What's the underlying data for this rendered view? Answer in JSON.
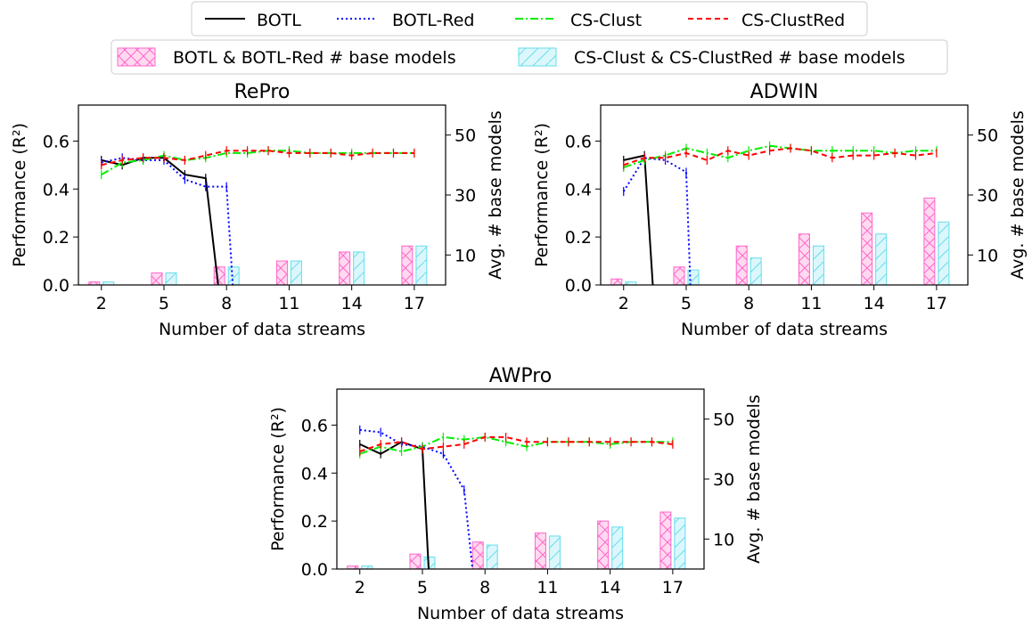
{
  "legend": {
    "line_entries": [
      {
        "label": "BOTL",
        "color": "#000000",
        "dash": "solid"
      },
      {
        "label": "BOTL-Red",
        "color": "#0000ff",
        "dash": "dotted"
      },
      {
        "label": "CS-Clust",
        "color": "#00ee00",
        "dash": "dashdot"
      },
      {
        "label": "CS-ClustRed",
        "color": "#ff0000",
        "dash": "dashed"
      }
    ],
    "bar_entries": [
      {
        "label": "BOTL & BOTL-Red # base models",
        "color": "#ff66cc"
      },
      {
        "label": "CS-Clust & CS-ClustRed # base models",
        "color": "#66ddee"
      }
    ]
  },
  "chart_data": [
    {
      "type": "line",
      "title": "RePro",
      "xlabel": "Number of data streams",
      "ylabel": "Performance (R²)",
      "y2label": "Avg. # base models",
      "x_ticks": [
        2,
        5,
        8,
        11,
        14,
        17
      ],
      "xlim": [
        0.9,
        18.5
      ],
      "ylim": [
        0,
        0.75
      ],
      "y_ticks": [
        "0.0",
        "0.2",
        "0.4",
        "0.6"
      ],
      "y2lim": [
        0,
        60
      ],
      "y2_ticks": [
        "10",
        "30",
        "50"
      ],
      "series": [
        {
          "name": "BOTL",
          "x": [
            2,
            3,
            4,
            5,
            6,
            7,
            7.6
          ],
          "y": [
            0.52,
            0.5,
            0.53,
            0.53,
            0.46,
            0.445,
            0.0
          ]
        },
        {
          "name": "BOTL-Red",
          "x": [
            2,
            3,
            4,
            5,
            6,
            7,
            8,
            8.3
          ],
          "y": [
            0.51,
            0.53,
            0.52,
            0.52,
            0.44,
            0.41,
            0.41,
            0.0
          ]
        },
        {
          "name": "CS-Clust",
          "x": [
            2,
            3,
            4,
            5,
            6,
            7,
            8,
            9,
            10,
            11,
            12,
            13,
            14,
            15,
            16,
            17
          ],
          "y": [
            0.46,
            0.51,
            0.52,
            0.54,
            0.52,
            0.53,
            0.55,
            0.55,
            0.56,
            0.56,
            0.55,
            0.55,
            0.55,
            0.55,
            0.55,
            0.55
          ]
        },
        {
          "name": "CS-ClustRed",
          "x": [
            2,
            3,
            4,
            5,
            6,
            7,
            8,
            9,
            10,
            11,
            12,
            13,
            14,
            15,
            16,
            17
          ],
          "y": [
            0.5,
            0.52,
            0.53,
            0.53,
            0.52,
            0.54,
            0.56,
            0.56,
            0.56,
            0.55,
            0.55,
            0.55,
            0.54,
            0.55,
            0.55,
            0.55
          ]
        }
      ],
      "bars": {
        "x": [
          2,
          5,
          8,
          11,
          14,
          17
        ],
        "botl": [
          1,
          4,
          6,
          8,
          11,
          13
        ],
        "cs": [
          1,
          4,
          6,
          8,
          11,
          13
        ]
      }
    },
    {
      "type": "line",
      "title": "ADWIN",
      "xlabel": "Number of data streams",
      "ylabel": "Performance (R²)",
      "y2label": "Avg. # base models",
      "x_ticks": [
        2,
        5,
        8,
        11,
        14,
        17
      ],
      "xlim": [
        0.9,
        18.5
      ],
      "ylim": [
        0,
        0.75
      ],
      "y_ticks": [
        "0.0",
        "0.2",
        "0.4",
        "0.6"
      ],
      "y2lim": [
        0,
        60
      ],
      "y2_ticks": [
        "10",
        "30",
        "50"
      ],
      "series": [
        {
          "name": "BOTL",
          "x": [
            2,
            3,
            3.4
          ],
          "y": [
            0.52,
            0.54,
            0.0
          ]
        },
        {
          "name": "BOTL-Red",
          "x": [
            2,
            3,
            4,
            5,
            5.2
          ],
          "y": [
            0.39,
            0.53,
            0.52,
            0.47,
            0.0
          ]
        },
        {
          "name": "CS-Clust",
          "x": [
            2,
            3,
            4,
            5,
            6,
            7,
            8,
            9,
            10,
            11,
            12,
            13,
            14,
            15,
            16,
            17
          ],
          "y": [
            0.49,
            0.52,
            0.54,
            0.57,
            0.55,
            0.53,
            0.56,
            0.58,
            0.57,
            0.56,
            0.56,
            0.56,
            0.56,
            0.55,
            0.56,
            0.56
          ]
        },
        {
          "name": "CS-ClustRed",
          "x": [
            2,
            3,
            4,
            5,
            6,
            7,
            8,
            9,
            10,
            11,
            12,
            13,
            14,
            15,
            16,
            17
          ],
          "y": [
            0.5,
            0.53,
            0.53,
            0.55,
            0.52,
            0.56,
            0.54,
            0.56,
            0.57,
            0.56,
            0.53,
            0.54,
            0.54,
            0.55,
            0.54,
            0.55
          ]
        }
      ],
      "bars": {
        "x": [
          2,
          5,
          8,
          11,
          14,
          17
        ],
        "botl": [
          2,
          6,
          13,
          17,
          24,
          29
        ],
        "cs": [
          1,
          5,
          9,
          13,
          17,
          21
        ]
      }
    },
    {
      "type": "line",
      "title": "AWPro",
      "xlabel": "Number of data streams",
      "ylabel": "Performance (R²)",
      "y2label": "Avg. # base models",
      "x_ticks": [
        2,
        5,
        8,
        11,
        14,
        17
      ],
      "xlim": [
        0.9,
        18.5
      ],
      "ylim": [
        0,
        0.75
      ],
      "y_ticks": [
        "0.0",
        "0.2",
        "0.4",
        "0.6"
      ],
      "y2lim": [
        0,
        60
      ],
      "y2_ticks": [
        "10",
        "30",
        "50"
      ],
      "series": [
        {
          "name": "BOTL",
          "x": [
            2,
            3,
            4,
            5,
            5.3
          ],
          "y": [
            0.52,
            0.48,
            0.53,
            0.5,
            0.0
          ]
        },
        {
          "name": "BOTL-Red",
          "x": [
            2,
            3,
            4,
            5,
            6,
            7,
            7.4
          ],
          "y": [
            0.58,
            0.57,
            0.52,
            0.51,
            0.48,
            0.33,
            0.0
          ]
        },
        {
          "name": "CS-Clust",
          "x": [
            2,
            3,
            4,
            5,
            6,
            7,
            8,
            9,
            10,
            11,
            12,
            13,
            14,
            15,
            16,
            17
          ],
          "y": [
            0.48,
            0.51,
            0.49,
            0.51,
            0.55,
            0.54,
            0.55,
            0.53,
            0.51,
            0.53,
            0.53,
            0.53,
            0.52,
            0.53,
            0.53,
            0.53
          ]
        },
        {
          "name": "CS-ClustRed",
          "x": [
            2,
            3,
            4,
            5,
            6,
            7,
            8,
            9,
            10,
            11,
            12,
            13,
            14,
            15,
            16,
            17
          ],
          "y": [
            0.49,
            0.52,
            0.53,
            0.5,
            0.51,
            0.52,
            0.55,
            0.55,
            0.53,
            0.53,
            0.53,
            0.53,
            0.53,
            0.53,
            0.53,
            0.52
          ]
        }
      ],
      "bars": {
        "x": [
          2,
          5,
          8,
          11,
          14,
          17
        ],
        "botl": [
          1,
          5,
          9,
          12,
          16,
          19
        ],
        "cs": [
          1,
          4,
          8,
          11,
          14,
          17
        ]
      }
    }
  ]
}
